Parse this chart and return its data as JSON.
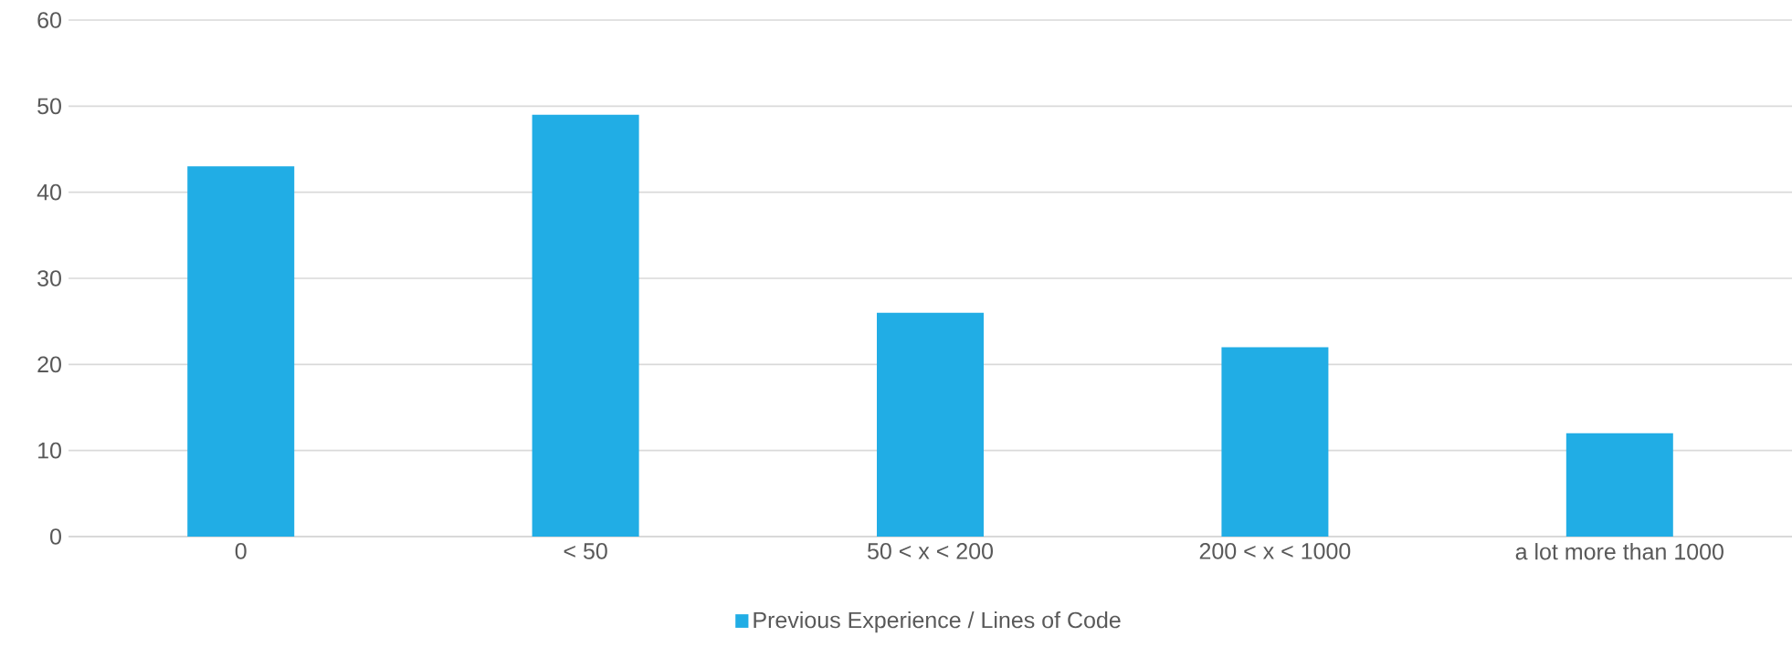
{
  "chart_data": {
    "type": "bar",
    "categories": [
      "0",
      "< 50",
      "50 < x < 200",
      "200 < x < 1000",
      "a lot more than 1000"
    ],
    "series": [
      {
        "name": "Previous Experience / Lines of Code",
        "color": "#21ade5",
        "values": [
          43,
          49,
          26,
          22,
          12
        ]
      }
    ],
    "ylim": [
      0,
      60
    ],
    "yticks": [
      0,
      10,
      20,
      30,
      40,
      50,
      60
    ],
    "grid": "y",
    "legend": "bottom"
  }
}
